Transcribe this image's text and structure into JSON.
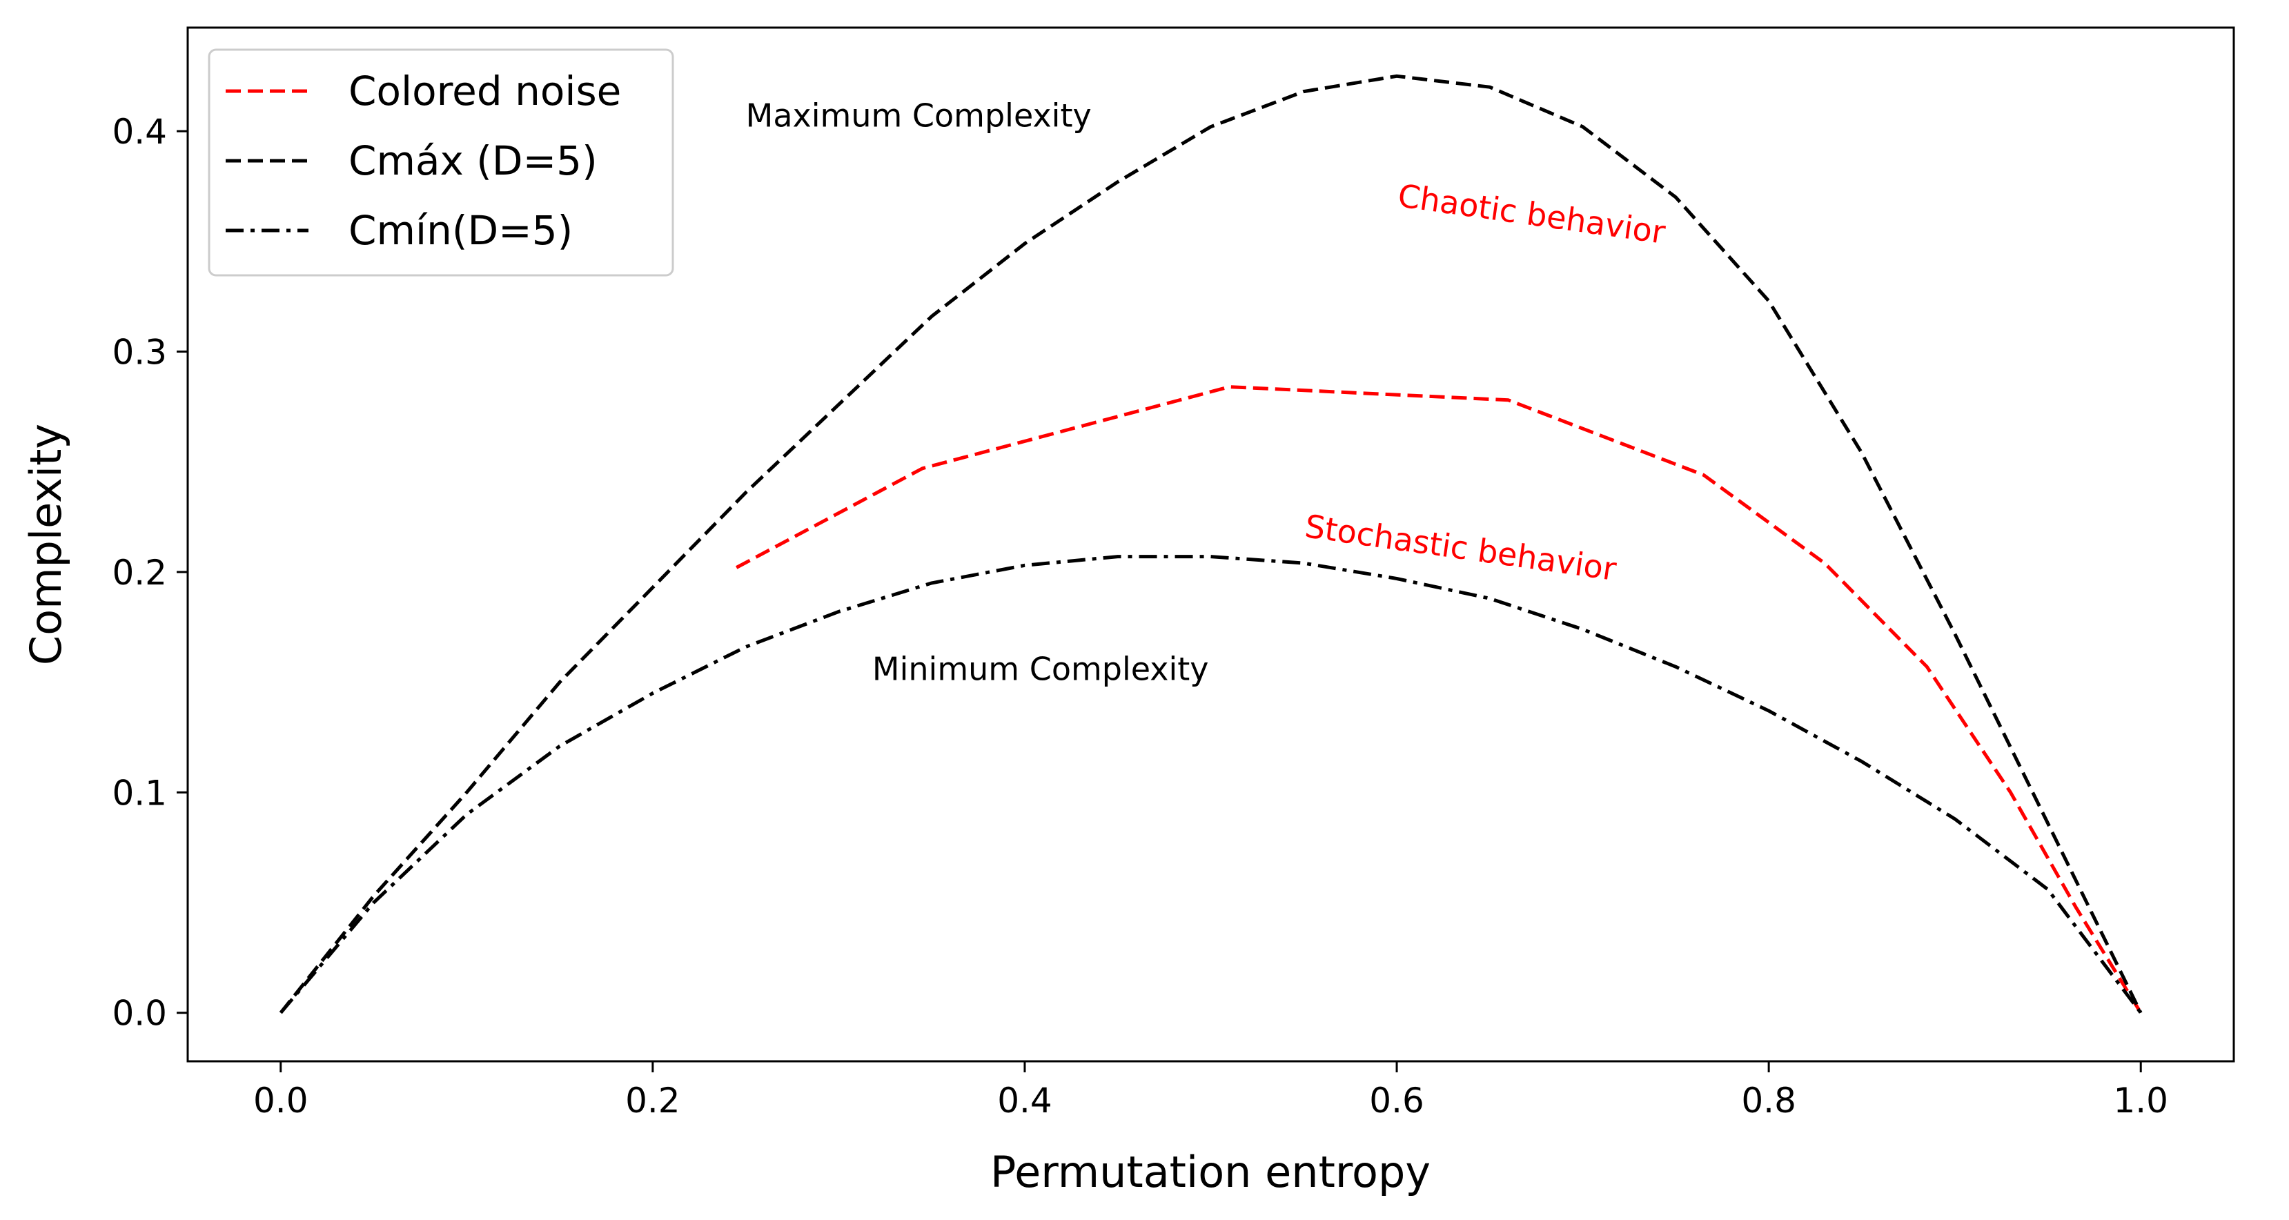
{
  "chart_data": {
    "type": "line",
    "title": "",
    "xlabel": "Permutation entropy",
    "ylabel": "Complexity",
    "xlim": [
      -0.05,
      1.05
    ],
    "ylim": [
      -0.022,
      0.447
    ],
    "xticks": [
      0.0,
      0.2,
      0.4,
      0.6,
      0.8,
      1.0
    ],
    "xtick_labels": [
      "0.0",
      "0.2",
      "0.4",
      "0.6",
      "0.8",
      "1.0"
    ],
    "yticks": [
      0.0,
      0.1,
      0.2,
      0.3,
      0.4
    ],
    "ytick_labels": [
      "0.0",
      "0.1",
      "0.2",
      "0.3",
      "0.4"
    ],
    "grid": false,
    "legend_position": "top-left",
    "series": [
      {
        "name": "Colored noise",
        "color": "#ff0000",
        "linestyle": "dashed",
        "x": [
          0.245,
          0.345,
          0.51,
          0.66,
          0.765,
          0.83,
          0.885,
          0.93,
          0.965,
          1.0
        ],
        "y": [
          0.202,
          0.247,
          0.284,
          0.278,
          0.244,
          0.204,
          0.157,
          0.1,
          0.048,
          0.0
        ]
      },
      {
        "name": "Cmáx (D=5)",
        "color": "#000000",
        "linestyle": "dashed",
        "x": [
          0.0,
          0.05,
          0.1,
          0.15,
          0.2,
          0.25,
          0.3,
          0.35,
          0.4,
          0.45,
          0.5,
          0.55,
          0.6,
          0.65,
          0.7,
          0.75,
          0.8,
          0.85,
          0.9,
          0.95,
          1.0
        ],
        "y": [
          0.0,
          0.053,
          0.1,
          0.15,
          0.193,
          0.236,
          0.276,
          0.316,
          0.349,
          0.377,
          0.402,
          0.418,
          0.425,
          0.42,
          0.402,
          0.37,
          0.323,
          0.254,
          0.172,
          0.086,
          0.0
        ]
      },
      {
        "name": "Cmín(D=5)",
        "color": "#000000",
        "linestyle": "dashdot",
        "x": [
          0.0,
          0.05,
          0.1,
          0.15,
          0.2,
          0.25,
          0.3,
          0.35,
          0.4,
          0.45,
          0.5,
          0.55,
          0.6,
          0.65,
          0.7,
          0.75,
          0.8,
          0.85,
          0.9,
          0.95,
          1.0
        ],
        "y": [
          0.0,
          0.05,
          0.09,
          0.121,
          0.145,
          0.166,
          0.182,
          0.195,
          0.203,
          0.207,
          0.207,
          0.204,
          0.197,
          0.188,
          0.174,
          0.157,
          0.137,
          0.114,
          0.088,
          0.056,
          0.0
        ]
      }
    ],
    "annotations": [
      {
        "text": "Maximum Complexity",
        "x": 0.25,
        "y": 0.402,
        "color": "#000000",
        "rotation": 0
      },
      {
        "text": "Chaotic behavior",
        "x": 0.6,
        "y": 0.366,
        "color": "#ff0000",
        "rotation": 8
      },
      {
        "text": "Stochastic behavior",
        "x": 0.55,
        "y": 0.216,
        "color": "#ff0000",
        "rotation": 8
      },
      {
        "text": "Minimum Complexity",
        "x": 0.318,
        "y": 0.151,
        "color": "#000000",
        "rotation": 0
      }
    ]
  }
}
